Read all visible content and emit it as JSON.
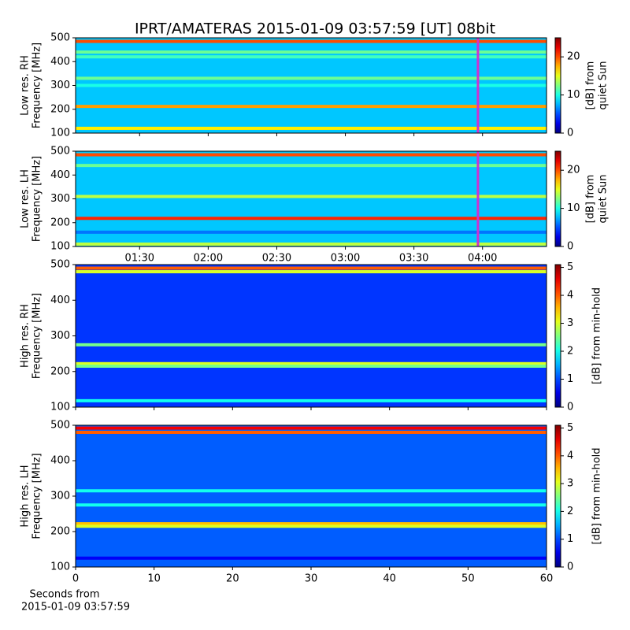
{
  "chart_data": [
    {
      "type": "spectrogram",
      "title": "IPRT/AMATERAS 2015-01-09 03:57:59 [UT]   08bit",
      "ylabel": [
        "Low res. RH",
        "Frequency [MHz]"
      ],
      "ylim": [
        100,
        500
      ],
      "yticks": [
        100,
        200,
        300,
        400,
        500
      ],
      "xlim": [
        62,
        268
      ],
      "xticks": [
        90,
        120,
        150,
        180,
        210,
        240
      ],
      "xticklabels": false,
      "colorbar": {
        "label": [
          "[dB] from",
          "quiet Sun"
        ],
        "lim": [
          0,
          25
        ],
        "ticks": [
          0,
          10,
          20
        ]
      },
      "background": 8,
      "marker_x": 238,
      "marker_color": "#d030d0",
      "bands": [
        {
          "f": 485,
          "level": 20
        },
        {
          "f": 440,
          "level": 12
        },
        {
          "f": 420,
          "level": 11
        },
        {
          "f": 330,
          "level": 12
        },
        {
          "f": 300,
          "level": 10
        },
        {
          "f": 212,
          "level": 18
        },
        {
          "f": 120,
          "level": 16
        }
      ]
    },
    {
      "type": "spectrogram",
      "ylabel": [
        "Low res. LH",
        "Frequency [MHz]"
      ],
      "ylim": [
        100,
        500
      ],
      "yticks": [
        100,
        200,
        300,
        400,
        500
      ],
      "xlim": [
        62,
        268
      ],
      "xticks": [
        {
          "value": 90,
          "label": "01:30"
        },
        {
          "value": 120,
          "label": "02:00"
        },
        {
          "value": 150,
          "label": "02:30"
        },
        {
          "value": 180,
          "label": "03:00"
        },
        {
          "value": 210,
          "label": "03:30"
        },
        {
          "value": 240,
          "label": "04:00"
        }
      ],
      "xticklabels": true,
      "colorbar": {
        "label": [
          "[dB] from",
          "quiet Sun"
        ],
        "lim": [
          0,
          25
        ],
        "ticks": [
          0,
          10,
          20
        ]
      },
      "background": 8,
      "marker_x": 238,
      "marker_color": "#d030d0",
      "bands": [
        {
          "f": 485,
          "level": 20
        },
        {
          "f": 440,
          "level": 12
        },
        {
          "f": 310,
          "level": 14
        },
        {
          "f": 218,
          "level": 21
        },
        {
          "f": 160,
          "level": 6
        },
        {
          "f": 110,
          "level": 14
        }
      ]
    },
    {
      "type": "spectrogram",
      "ylabel": [
        "High res. RH",
        "Frequency [MHz]"
      ],
      "ylim": [
        100,
        500
      ],
      "yticks": [
        100,
        200,
        300,
        400,
        500
      ],
      "xlim": [
        0,
        60
      ],
      "xticks": [
        0,
        10,
        20,
        30,
        40,
        50,
        60
      ],
      "xticklabels": false,
      "colorbar": {
        "label": [
          "[dB] from min-hold"
        ],
        "lim": [
          0,
          5.1
        ],
        "ticks": [
          0,
          1,
          2,
          3,
          4,
          5
        ]
      },
      "background": 0.9,
      "bands": [
        {
          "f": 490,
          "level": 4
        },
        {
          "f": 480,
          "level": 3
        },
        {
          "f": 275,
          "level": 2.5
        },
        {
          "f": 222,
          "level": 3
        },
        {
          "f": 215,
          "level": 2.5
        },
        {
          "f": 118,
          "level": 2
        }
      ]
    },
    {
      "type": "spectrogram",
      "ylabel": [
        "High res. LH",
        "Frequency [MHz]"
      ],
      "ylim": [
        100,
        500
      ],
      "yticks": [
        100,
        200,
        300,
        400,
        500
      ],
      "xlim": [
        0,
        60
      ],
      "xticks": [
        0,
        10,
        20,
        30,
        40,
        50,
        60
      ],
      "xticklabels": true,
      "xlabel": [
        "Seconds from",
        "2015-01-09 03:57:59"
      ],
      "colorbar": {
        "label": [
          "[dB] from min-hold"
        ],
        "lim": [
          0,
          5.1
        ],
        "ticks": [
          0,
          1,
          2,
          3,
          4,
          5
        ]
      },
      "background": 1.1,
      "bands": [
        {
          "f": 492,
          "level": 4.5
        },
        {
          "f": 480,
          "level": 4
        },
        {
          "f": 315,
          "level": 2
        },
        {
          "f": 275,
          "level": 2
        },
        {
          "f": 222,
          "level": 3.5
        },
        {
          "f": 215,
          "level": 3
        },
        {
          "f": 125,
          "level": 0.6
        }
      ]
    }
  ]
}
